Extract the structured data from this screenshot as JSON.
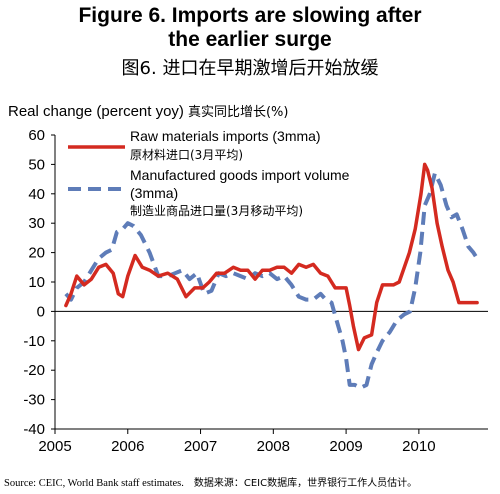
{
  "title_line1": "Figure 6. Imports are slowing after",
  "title_line2": "the earlier surge",
  "subtitle_cn": "图6. 进口在早期激增后开始放缓",
  "source": "Source: CEIC, World Bank staff estimates.",
  "source_cn": "数据来源：CEIC数据库，世界银行工作人员估计。",
  "chart_data": {
    "type": "line",
    "ylabel": "Real change (percent yoy)",
    "ylabel_cn": "真实同比增长(%)",
    "xlim": [
      2005,
      2010.95
    ],
    "ylim": [
      -40,
      60
    ],
    "yticks": [
      60,
      50,
      40,
      30,
      20,
      10,
      0,
      -10,
      -20,
      -30,
      -40
    ],
    "xticks": [
      "2005",
      "2006",
      "2007",
      "2008",
      "2009",
      "2010"
    ],
    "grid": false,
    "legend_position": "top-right",
    "series": [
      {
        "name": "Raw materials imports (3mma)",
        "name_cn": "原材料进口(3月平均)",
        "style": "solid",
        "color": "#d42a20",
        "x": [
          2005.15,
          2005.22,
          2005.3,
          2005.4,
          2005.5,
          2005.6,
          2005.7,
          2005.8,
          2005.87,
          2005.93,
          2006.0,
          2006.1,
          2006.2,
          2006.3,
          2006.42,
          2006.55,
          2006.68,
          2006.8,
          2006.92,
          2007.03,
          2007.12,
          2007.22,
          2007.33,
          2007.45,
          2007.55,
          2007.65,
          2007.75,
          2007.85,
          2007.95,
          2008.05,
          2008.15,
          2008.25,
          2008.35,
          2008.45,
          2008.55,
          2008.65,
          2008.75,
          2008.8,
          2008.85,
          2008.92,
          2009.0,
          2009.05,
          2009.1,
          2009.17,
          2009.25,
          2009.35,
          2009.42,
          2009.5,
          2009.57,
          2009.65,
          2009.73,
          2009.8,
          2009.87,
          2009.95,
          2010.03,
          2010.08,
          2010.12,
          2010.18,
          2010.25,
          2010.32,
          2010.4,
          2010.47,
          2010.55,
          2010.62,
          2010.7,
          2010.8
        ],
        "values": [
          2,
          6,
          12,
          9,
          11,
          15,
          16,
          13,
          6,
          5,
          12,
          19,
          15,
          14,
          12,
          13,
          11,
          5,
          8,
          8,
          10,
          13,
          13,
          15,
          14,
          14,
          11,
          14,
          14,
          15,
          15,
          13,
          16,
          15,
          16,
          13,
          12,
          10,
          8,
          8,
          8,
          2,
          -5,
          -13,
          -9,
          -8,
          3,
          9,
          9,
          9,
          10,
          15,
          20,
          28,
          40,
          50,
          48,
          42,
          30,
          22,
          14,
          10,
          3,
          3,
          3,
          3
        ]
      },
      {
        "name": "Manufactured goods import volume (3mma)",
        "name_cn": "制造业商品进口量(3月移动平均)",
        "style": "dashed",
        "color": "#5e7cb8",
        "x": [
          2005.15,
          2005.22,
          2005.3,
          2005.4,
          2005.5,
          2005.6,
          2005.7,
          2005.78,
          2005.85,
          2005.93,
          2006.0,
          2006.08,
          2006.18,
          2006.3,
          2006.42,
          2006.55,
          2006.65,
          2006.75,
          2006.85,
          2006.95,
          2007.05,
          2007.15,
          2007.25,
          2007.35,
          2007.45,
          2007.55,
          2007.65,
          2007.75,
          2007.85,
          2007.95,
          2008.05,
          2008.15,
          2008.25,
          2008.35,
          2008.45,
          2008.55,
          2008.65,
          2008.72,
          2008.8,
          2008.88,
          2008.95,
          2009.0,
          2009.05,
          2009.12,
          2009.2,
          2009.28,
          2009.35,
          2009.42,
          2009.5,
          2009.6,
          2009.7,
          2009.8,
          2009.88,
          2009.95,
          2010.02,
          2010.08,
          2010.15,
          2010.22,
          2010.3,
          2010.38,
          2010.45,
          2010.52,
          2010.6,
          2010.68,
          2010.75,
          2010.8
        ],
        "values": [
          6,
          4,
          8,
          10,
          14,
          18,
          20,
          21,
          27,
          28,
          30,
          29,
          26,
          20,
          12,
          12,
          13,
          14,
          11,
          13,
          6,
          7,
          13,
          12,
          13,
          12,
          11,
          13,
          12,
          13,
          11,
          12,
          9,
          5,
          4,
          4,
          6,
          4,
          3,
          -4,
          -10,
          -16,
          -25,
          -25,
          -26,
          -25,
          -18,
          -14,
          -10,
          -7,
          -3,
          -1,
          0,
          8,
          20,
          36,
          40,
          47,
          43,
          36,
          32,
          33,
          28,
          22,
          20,
          18
        ]
      }
    ]
  }
}
